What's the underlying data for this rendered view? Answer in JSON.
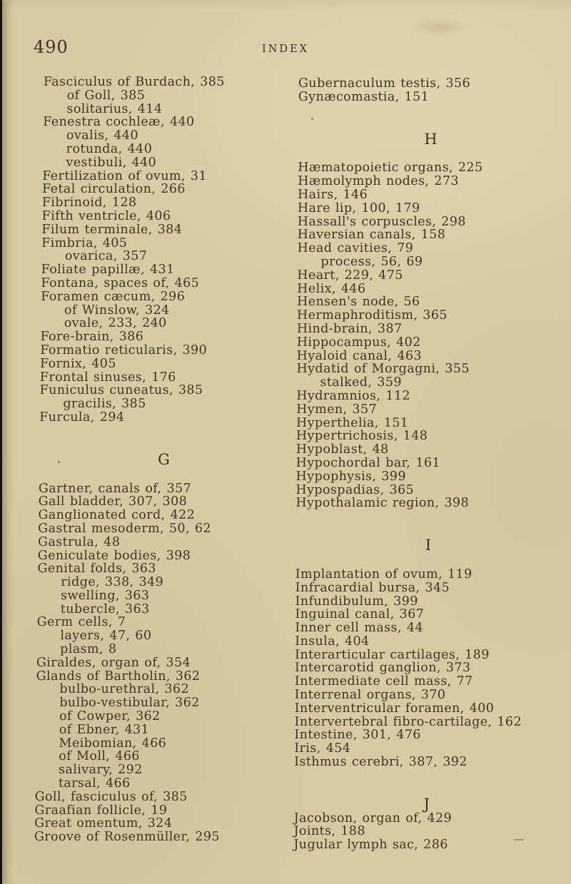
{
  "page": {
    "number": "490",
    "title": "INDEX"
  },
  "left_column": {
    "sections": [
      {
        "header": "",
        "entries": [
          {
            "text": "Fasciculus of Burdach, 385"
          },
          {
            "text": "of Goll, 385",
            "sub": true
          },
          {
            "text": "solitarius, 414",
            "sub": true
          },
          {
            "text": "Fenestra cochleæ, 440"
          },
          {
            "text": "ovalis, 440",
            "sub": true
          },
          {
            "text": "rotunda, 440",
            "sub": true
          },
          {
            "text": "vestibuli, 440",
            "sub": true
          },
          {
            "text": "Fertilization of ovum, 31"
          },
          {
            "text": "Fetal circulation, 266"
          },
          {
            "text": "Fibrinoid, 128"
          },
          {
            "text": "Fifth ventricle, 406"
          },
          {
            "text": "Filum terminale, 384"
          },
          {
            "text": "Fimbria, 405"
          },
          {
            "text": "ovarica, 357",
            "sub": true
          },
          {
            "text": "Foliate papillæ, 431"
          },
          {
            "text": "Fontana, spaces of, 465"
          },
          {
            "text": "Foramen cæcum, 296"
          },
          {
            "text": "of Winslow, 324",
            "sub": true
          },
          {
            "text": "ovale, 233, 240",
            "sub": true
          },
          {
            "text": "Fore-brain, 386"
          },
          {
            "text": "Formatio reticularis, 390"
          },
          {
            "text": "Fornix, 405"
          },
          {
            "text": "Frontal sinuses, 176"
          },
          {
            "text": "Funiculus cuneatus, 385"
          },
          {
            "text": "gracilis, 385",
            "sub": true
          },
          {
            "text": "Furcula, 294"
          }
        ]
      },
      {
        "header": "G",
        "entries": [
          {
            "text": "Gartner, canals of, 357"
          },
          {
            "text": "Gall bladder, 307, 308"
          },
          {
            "text": "Ganglionated cord, 422"
          },
          {
            "text": "Gastral mesoderm, 50, 62"
          },
          {
            "text": "Gastrula, 48"
          },
          {
            "text": "Geniculate bodies, 398"
          },
          {
            "text": "Genital folds, 363"
          },
          {
            "text": "ridge, 338, 349",
            "sub": true
          },
          {
            "text": "swelling, 363",
            "sub": true
          },
          {
            "text": "tubercle, 363",
            "sub": true
          },
          {
            "text": "Germ cells, 7"
          },
          {
            "text": "layers, 47, 60",
            "sub": true
          },
          {
            "text": "plasm, 8",
            "sub": true
          },
          {
            "text": "Giraldes, organ of, 354"
          },
          {
            "text": "Glands of Bartholin, 362"
          },
          {
            "text": "bulbo-urethral, 362",
            "sub": true
          },
          {
            "text": "bulbo-vestibular, 362",
            "sub": true
          },
          {
            "text": "of Cowper, 362",
            "sub": true
          },
          {
            "text": "of Ebner, 431",
            "sub": true
          },
          {
            "text": "Meibomian, 466",
            "sub": true
          },
          {
            "text": "of Moll, 466",
            "sub": true
          },
          {
            "text": "salivary, 292",
            "sub": true
          },
          {
            "text": "tarsal, 466",
            "sub": true
          },
          {
            "text": "Goll, fasciculus of, 385"
          },
          {
            "text": "Graafian follicle, 19"
          },
          {
            "text": "Great omentum, 324"
          },
          {
            "text": "Groove of Rosenmüller, 295"
          }
        ]
      }
    ]
  },
  "right_column": {
    "sections": [
      {
        "header": "",
        "entries": [
          {
            "text": "Gubernaculum testis, 356"
          },
          {
            "text": "Gynæcomastia, 151"
          }
        ]
      },
      {
        "header": "H",
        "entries": [
          {
            "text": "Hæmatopoietic organs, 225"
          },
          {
            "text": "Hæmolymph nodes, 273"
          },
          {
            "text": "Hairs, 146"
          },
          {
            "text": "Hare lip, 100, 179"
          },
          {
            "text": "Hassall's corpuscles, 298"
          },
          {
            "text": "Haversian canals, 158"
          },
          {
            "text": "Head cavities, 79"
          },
          {
            "text": "process, 56, 69",
            "sub": true
          },
          {
            "text": "Heart, 229, 475"
          },
          {
            "text": "Helix, 446"
          },
          {
            "text": "Hensen's node, 56"
          },
          {
            "text": "Hermaphroditism, 365"
          },
          {
            "text": "Hind-brain, 387"
          },
          {
            "text": "Hippocampus, 402"
          },
          {
            "text": "Hyaloid canal, 463"
          },
          {
            "text": "Hydatid of Morgagni, 355"
          },
          {
            "text": "stalked, 359",
            "sub": true
          },
          {
            "text": "Hydramnios, 112"
          },
          {
            "text": "Hymen, 357"
          },
          {
            "text": "Hyperthelia, 151"
          },
          {
            "text": "Hypertrichosis, 148"
          },
          {
            "text": "Hypoblast, 48"
          },
          {
            "text": "Hypochordal bar, 161"
          },
          {
            "text": "Hypophysis, 399"
          },
          {
            "text": "Hypospadias, 365"
          },
          {
            "text": "Hypothalamic region, 398"
          }
        ]
      },
      {
        "header": "I",
        "entries": [
          {
            "text": "Implantation of ovum, 119"
          },
          {
            "text": "Infracardial bursa, 345"
          },
          {
            "text": "Infundibulum, 399"
          },
          {
            "text": "Inguinal canal, 367"
          },
          {
            "text": "Inner cell mass, 44"
          },
          {
            "text": "Insula, 404"
          },
          {
            "text": "Interarticular cartilages, 189"
          },
          {
            "text": "Intercarotid ganglion, 373"
          },
          {
            "text": "Intermediate cell mass, 77"
          },
          {
            "text": "Interrenal organs, 370"
          },
          {
            "text": "Interventricular foramen, 400"
          },
          {
            "text": "Intervertebral fibro-cartilage, 162"
          },
          {
            "text": "Intestine, 301, 476"
          },
          {
            "text": "Iris, 454"
          },
          {
            "text": "Isthmus cerebri, 387, 392"
          }
        ]
      },
      {
        "header": "J",
        "tight": true,
        "entries": [
          {
            "text": "Jacobson, organ of, 429"
          },
          {
            "text": "Joints, 188"
          },
          {
            "text": "Jugular lymph sac, 286"
          }
        ]
      }
    ]
  }
}
